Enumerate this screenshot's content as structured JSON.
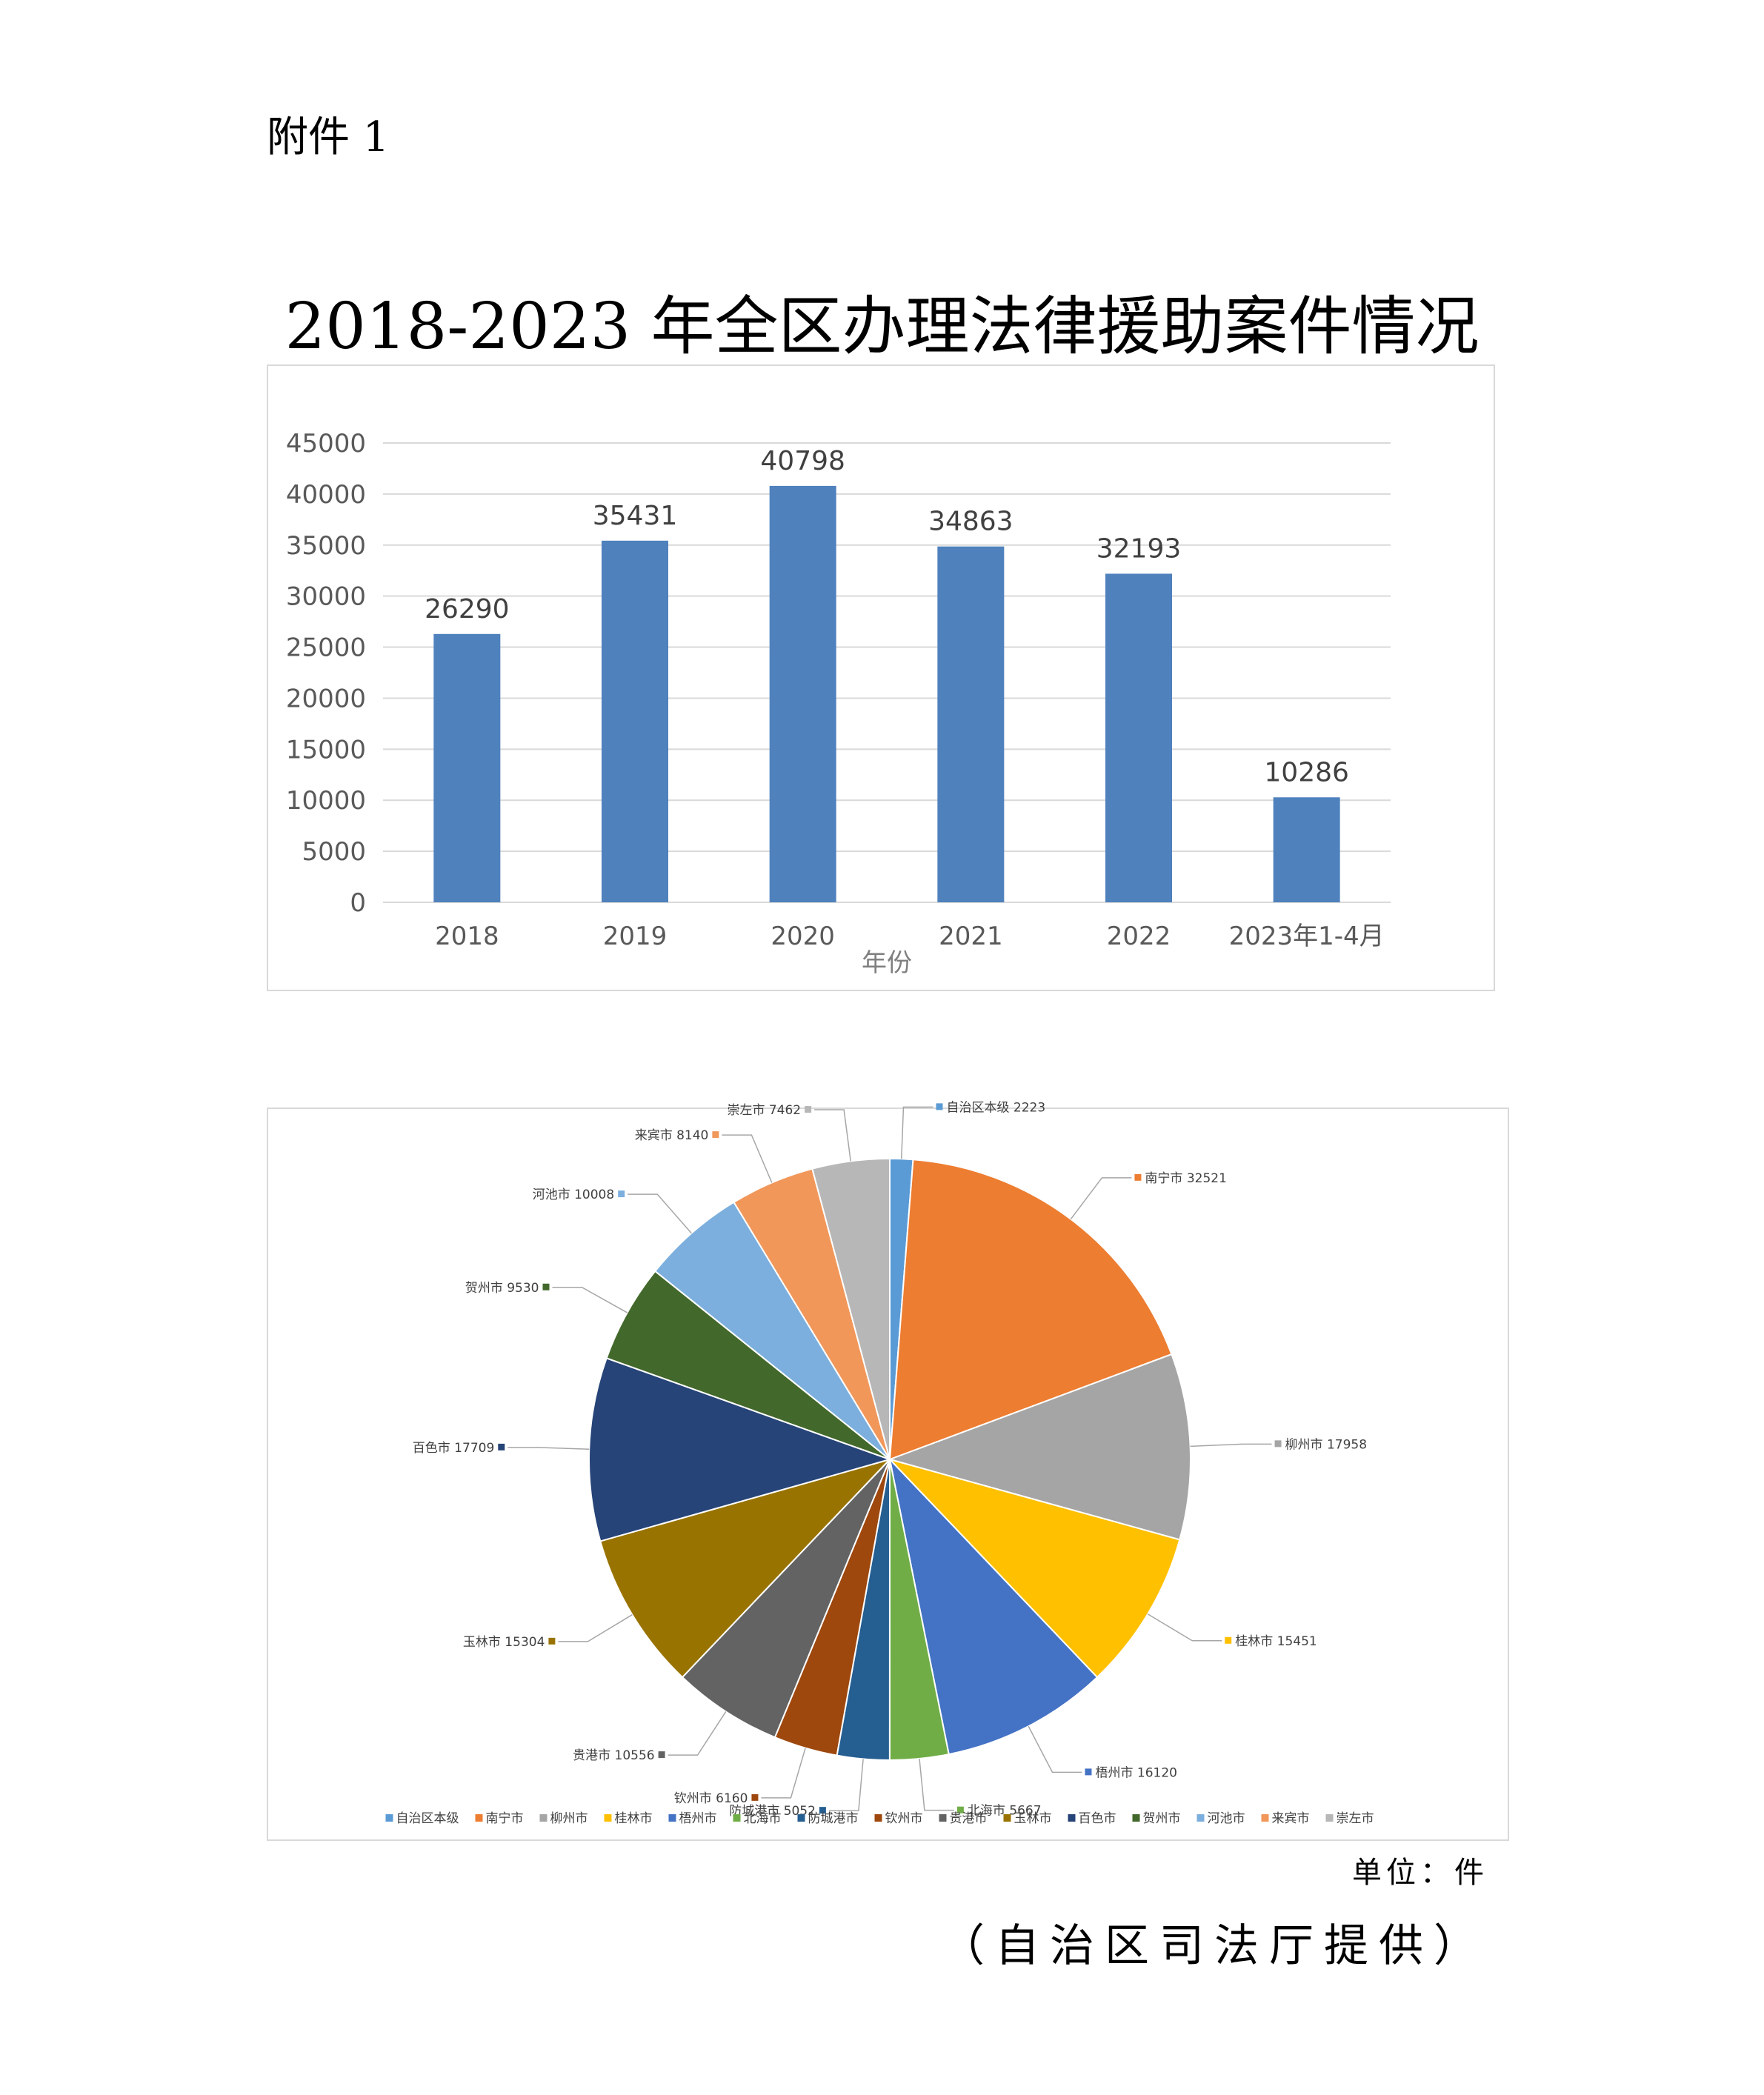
{
  "header": {
    "attachment": "附件 1"
  },
  "title": "2018-2023 年全区办理法律援助案件情况",
  "colors": {
    "bar": "#4f81bd",
    "grid": "#d9d9d9"
  },
  "chart_data": [
    {
      "type": "bar",
      "categories": [
        "2018",
        "2019",
        "2020",
        "2021",
        "2022",
        "2023年1-4月"
      ],
      "values": [
        26290,
        35431,
        40798,
        34863,
        32193,
        10286
      ],
      "xlabel": "年份",
      "ylabel": "",
      "ylim": [
        0,
        45000
      ],
      "yticks": [
        0,
        5000,
        10000,
        15000,
        20000,
        25000,
        30000,
        35000,
        40000,
        45000
      ],
      "grid": true,
      "data_labels": true
    },
    {
      "type": "pie",
      "labels": [
        "自治区本级",
        "南宁市",
        "柳州市",
        "桂林市",
        "梧州市",
        "北海市",
        "防城港市",
        "钦州市",
        "贵港市",
        "玉林市",
        "百色市",
        "贺州市",
        "河池市",
        "来宾市",
        "崇左市"
      ],
      "values": [
        2223,
        32521,
        17958,
        15451,
        16120,
        5667,
        5052,
        6160,
        10556,
        15304,
        17709,
        9530,
        10008,
        8140,
        7462
      ],
      "colors": [
        "#5b9bd5",
        "#ed7d31",
        "#a5a5a5",
        "#ffc000",
        "#4472c4",
        "#70ad47",
        "#255e91",
        "#9e480e",
        "#636363",
        "#997300",
        "#264478",
        "#43682b",
        "#7cafdd",
        "#f1975a",
        "#b7b7b7"
      ],
      "legend_position": "bottom",
      "data_labels": true
    }
  ],
  "footer": {
    "unit": "单位：件",
    "source": "（自治区司法厅提供）"
  }
}
